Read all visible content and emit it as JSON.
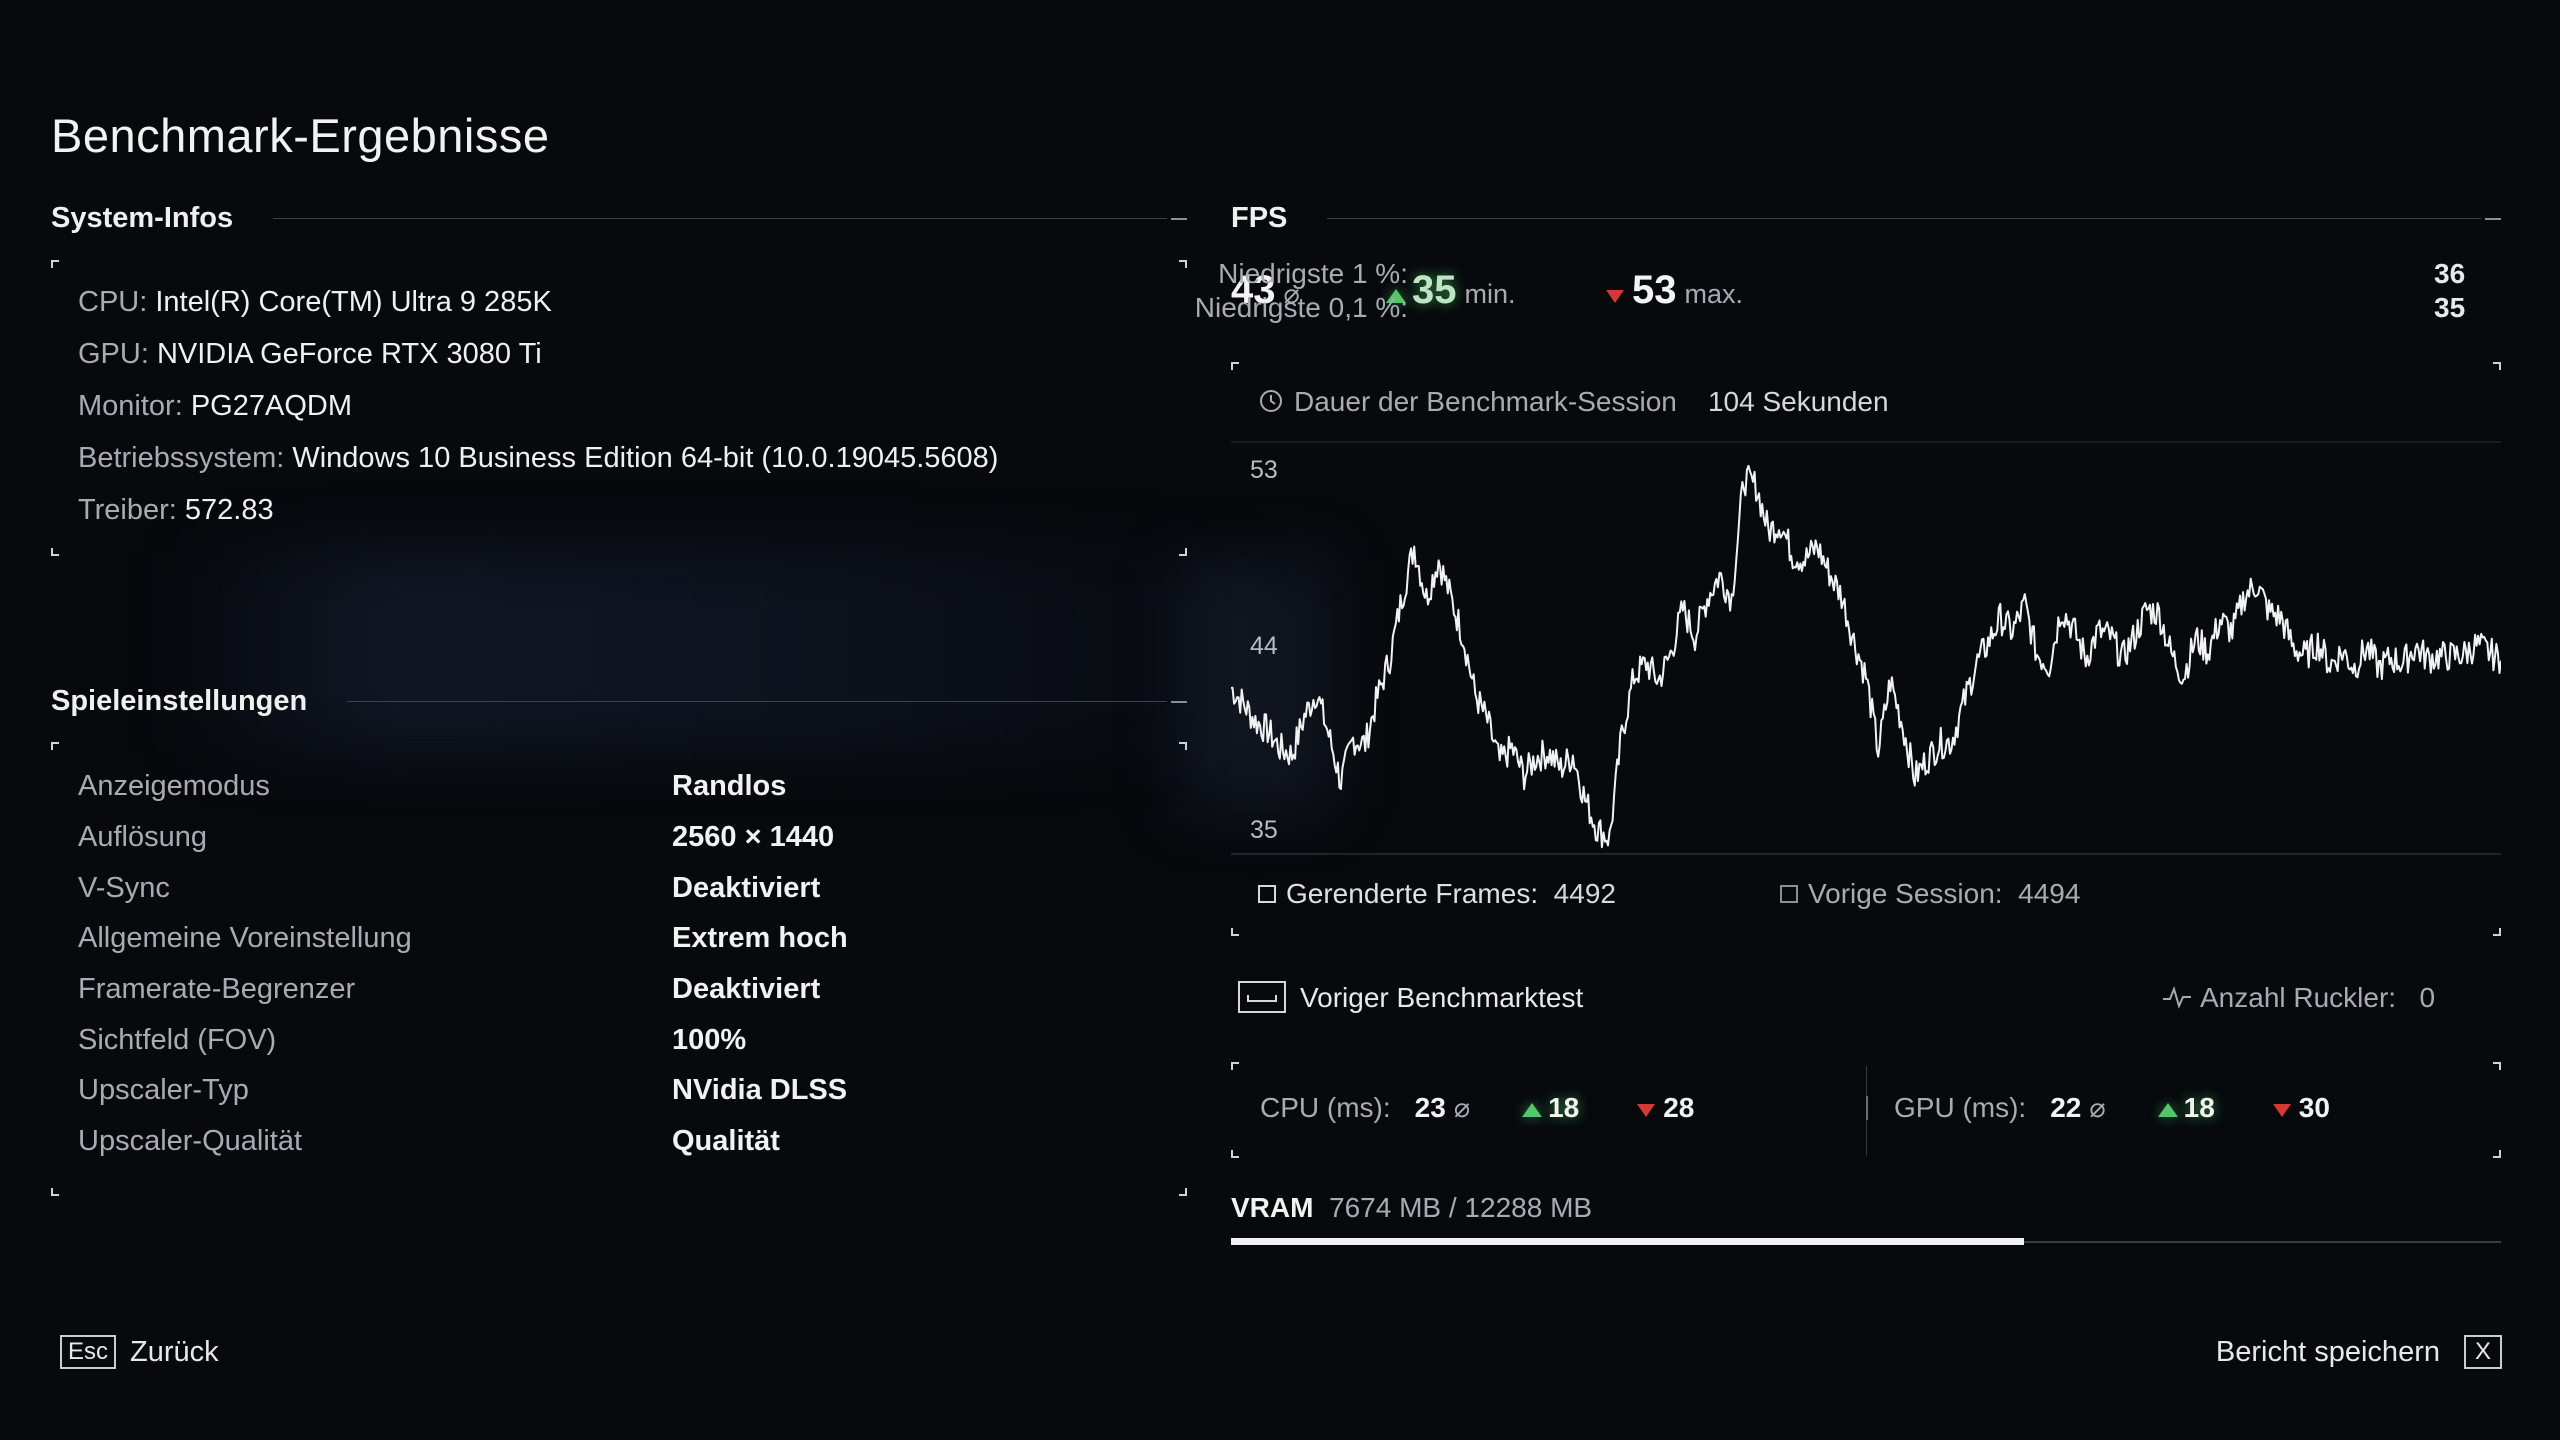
{
  "title": "Benchmark-Ergebnisse",
  "system": {
    "heading": "System-Infos",
    "items": [
      {
        "key": "CPU:",
        "value": "Intel(R) Core(TM) Ultra 9 285K"
      },
      {
        "key": "GPU:",
        "value": "NVIDIA GeForce RTX 3080 Ti"
      },
      {
        "key": "Monitor:",
        "value": "PG27AQDM"
      },
      {
        "key": "Betriebssystem:",
        "value": "Windows 10 Business Edition 64-bit (10.0.19045.5608)"
      },
      {
        "key": "Treiber:",
        "value": "572.83"
      }
    ]
  },
  "settings": {
    "heading": "Spieleinstellungen",
    "items": [
      {
        "label": "Anzeigemodus",
        "value": "Randlos"
      },
      {
        "label": "Auflösung",
        "value": "2560 × 1440"
      },
      {
        "label": "V-Sync",
        "value": "Deaktiviert"
      },
      {
        "label": "Allgemeine Voreinstellung",
        "value": "Extrem hoch"
      },
      {
        "label": "Framerate-Begrenzer",
        "value": "Deaktiviert"
      },
      {
        "label": "Sichtfeld (FOV)",
        "value": "100%"
      },
      {
        "label": "Upscaler-Typ",
        "value": "NVidia DLSS"
      },
      {
        "label": "Upscaler-Qualität",
        "value": "Qualität"
      }
    ]
  },
  "fps": {
    "heading": "FPS",
    "avg": "43",
    "avg_symbol": "⌀",
    "min": "35",
    "min_label": "min.",
    "max": "53",
    "max_label": "max.",
    "low1_label": "Niedrigste 1 %:",
    "low1_value": "36",
    "low01_label": "Niedrigste 0,1 %:",
    "low01_value": "35"
  },
  "session": {
    "duration_label": "Dauer der Benchmark-Session",
    "duration_value": "104 Sekunden",
    "rendered_label": "Gerenderte Frames:",
    "rendered_value": "4492",
    "previous_label": "Vorige Session:",
    "previous_value": "4494"
  },
  "chart_data": {
    "type": "line",
    "title": "",
    "xlabel": "",
    "ylabel": "",
    "xlim": [
      0,
      104
    ],
    "ylim": [
      35,
      53
    ],
    "yticks": [
      "53",
      "44",
      "35"
    ],
    "series": [
      {
        "values": [
          42.5,
          41.8,
          41.0,
          40.6,
          39.8,
          39.5,
          41.2,
          42.3,
          40.4,
          38.3,
          40.2,
          40.0,
          42.1,
          43.8,
          46.5,
          48.8,
          46.5,
          48.2,
          46.5,
          44.8,
          42.2,
          41.0,
          39.2,
          39.8,
          38.6,
          39.4,
          39.6,
          38.9,
          39.5,
          37.5,
          36.2,
          35.8,
          40.4,
          43.0,
          43.6,
          42.8,
          44.0,
          46.0,
          44.8,
          46.5,
          47.5,
          46.5,
          51.8,
          51.5,
          49.5,
          49.8,
          48.4,
          48.2,
          48.8,
          47.6,
          46.6,
          44.6,
          43.0,
          39.7,
          42.8,
          40.8,
          38.5,
          39.3,
          40.0,
          40.1,
          41.8,
          43.5,
          44.5,
          45.6,
          45.0,
          46.2,
          44.0,
          43.5,
          46.0,
          45.1,
          43.8,
          45.0,
          44.8,
          43.8,
          44.8,
          46.0,
          45.8,
          44.0,
          43.0,
          44.7,
          44.1,
          45.5,
          45.0,
          46.6,
          47.1,
          45.9,
          45.6,
          44.3,
          43.9,
          44.5,
          43.5,
          44.1,
          43.4,
          44.3,
          43.4,
          43.8,
          43.6,
          44.3,
          43.8,
          43.9,
          43.9,
          44.0,
          44.4,
          44.1,
          43.7
        ]
      }
    ]
  },
  "previous_benchmark": {
    "label": "Voriger Benchmarktest",
    "stutter_label": "Anzahl Ruckler:",
    "stutter_value": "0"
  },
  "cpu_ms": {
    "label": "CPU (ms):",
    "avg": "23",
    "avg_symbol": "⌀",
    "min": "18",
    "max": "28"
  },
  "gpu_ms": {
    "label": "GPU (ms):",
    "avg": "22",
    "avg_symbol": "⌀",
    "min": "18",
    "max": "30"
  },
  "vram": {
    "label": "VRAM",
    "value": "7674 MB / 12288 MB",
    "fraction": 0.6245
  },
  "footer": {
    "back_key": "Esc",
    "back_label": "Zurück",
    "save_label": "Bericht speichern",
    "save_key": "X"
  }
}
